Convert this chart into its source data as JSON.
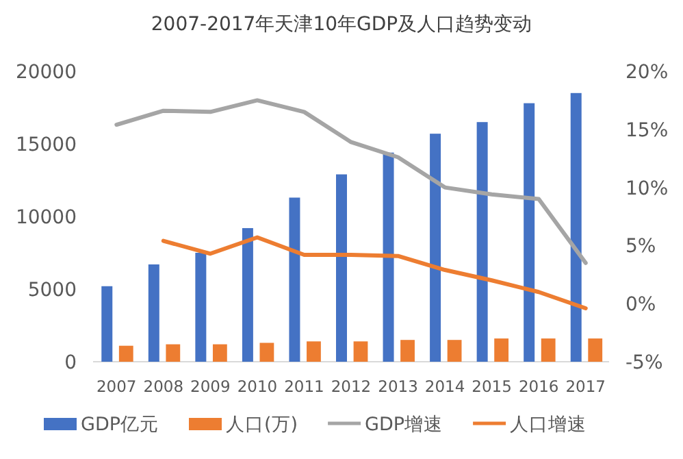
{
  "chart_data": {
    "type": "bar",
    "title": "2007-2017年天津10年GDP及人口趋势变动",
    "categories": [
      "2007",
      "2008",
      "2009",
      "2010",
      "2011",
      "2012",
      "2013",
      "2014",
      "2015",
      "2016",
      "2017"
    ],
    "series": [
      {
        "name": "GDP亿元",
        "color": "#4472c4",
        "values": [
          5200,
          6700,
          7500,
          9200,
          11300,
          12900,
          14400,
          15700,
          16500,
          17800,
          18500
        ]
      },
      {
        "name": "人口(万)",
        "color": "#ed7d31",
        "values": [
          1100,
          1200,
          1200,
          1300,
          1400,
          1400,
          1500,
          1500,
          1600,
          1600,
          1600
        ]
      },
      {
        "name": "GDP增速",
        "type": "line",
        "axis": "y2",
        "color": "#a5a5a5",
        "values": [
          15.4,
          16.6,
          16.5,
          17.5,
          16.5,
          13.9,
          12.6,
          10.0,
          9.4,
          9.0,
          3.5
        ]
      },
      {
        "name": "人口增速",
        "type": "line",
        "axis": "y2",
        "color": "#ed7d31",
        "values": [
          null,
          5.4,
          4.3,
          5.7,
          4.2,
          4.2,
          4.1,
          2.9,
          2.0,
          1.0,
          -0.4
        ]
      }
    ],
    "ylim": [
      0,
      20000
    ],
    "yticks": [
      0,
      5000,
      10000,
      15000,
      20000
    ],
    "y2lim": [
      -5,
      20
    ],
    "y2ticks": [
      {
        "value": -5,
        "label": "-5%"
      },
      {
        "value": 0,
        "label": "0%"
      },
      {
        "value": 5,
        "label": "5%"
      },
      {
        "value": 10,
        "label": "10%"
      },
      {
        "value": 15,
        "label": "15%"
      },
      {
        "value": 20,
        "label": "20%"
      }
    ],
    "legend": "bottom",
    "grid": false,
    "marker": "none"
  }
}
